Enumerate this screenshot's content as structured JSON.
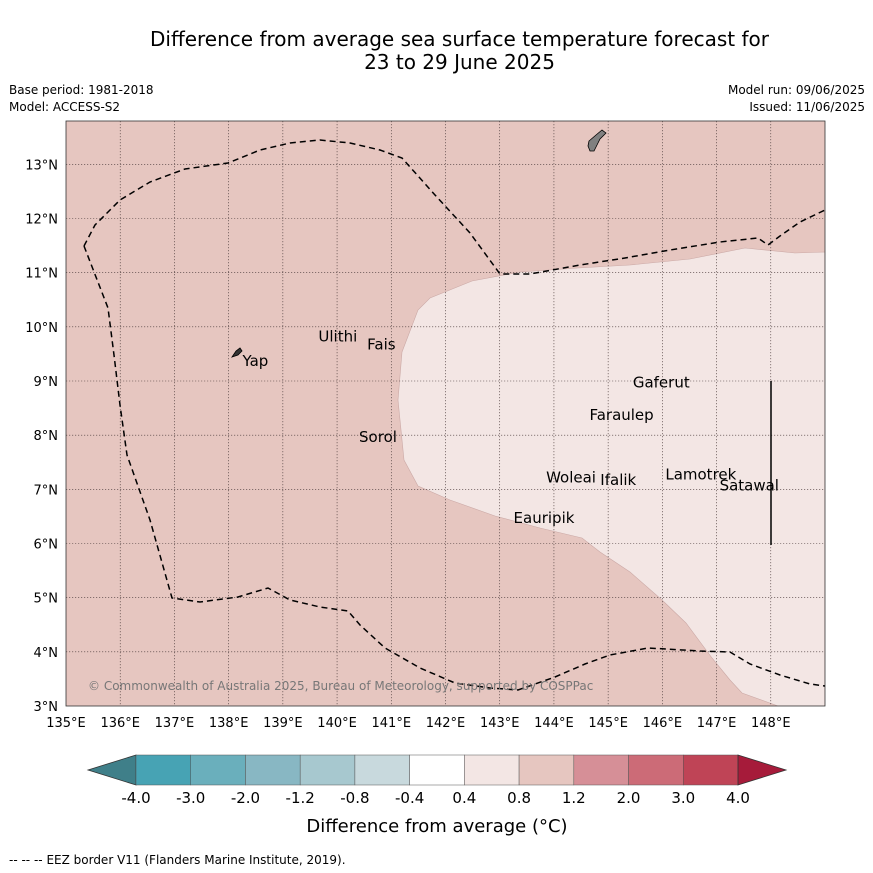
{
  "title": {
    "line1": "Difference from average sea surface temperature forecast for",
    "line2": "23 to 29 June 2025"
  },
  "meta": {
    "base_period": "Base period: 1981-2018",
    "model": "Model: ACCESS-S2",
    "model_run": "Model run: 09/06/2025",
    "issued": "Issued: 11/06/2025"
  },
  "map": {
    "lon_range": [
      135,
      149
    ],
    "lat_range": [
      3,
      13.8
    ],
    "x_ticks": [
      "135°E",
      "136°E",
      "137°E",
      "138°E",
      "139°E",
      "140°E",
      "141°E",
      "142°E",
      "143°E",
      "144°E",
      "145°E",
      "146°E",
      "147°E",
      "148°E"
    ],
    "y_ticks": [
      "3°N",
      "4°N",
      "5°N",
      "6°N",
      "7°N",
      "8°N",
      "9°N",
      "10°N",
      "11°N",
      "12°N",
      "13°N"
    ],
    "background_color": "#e6c6c0",
    "warm_region_color": "#f3e6e4",
    "copyright": "© Commonwealth of Australia 2025, Bureau of Meteorology, supported by COSPPac",
    "places": [
      {
        "name": "Yap",
        "lon": 138.2,
        "lat": 9.5
      },
      {
        "name": "Ulithi",
        "lon": 139.6,
        "lat": 9.95
      },
      {
        "name": "Fais",
        "lon": 140.5,
        "lat": 9.8
      },
      {
        "name": "Sorol",
        "lon": 140.35,
        "lat": 8.1
      },
      {
        "name": "Gaferut",
        "lon": 145.4,
        "lat": 9.1
      },
      {
        "name": "Faraulep",
        "lon": 144.6,
        "lat": 8.5
      },
      {
        "name": "Woleai",
        "lon": 143.8,
        "lat": 7.35
      },
      {
        "name": "Ifalik",
        "lon": 144.8,
        "lat": 7.3
      },
      {
        "name": "Lamotrek",
        "lon": 146.0,
        "lat": 7.4
      },
      {
        "name": "Eauripik",
        "lon": 143.2,
        "lat": 6.6
      },
      {
        "name": "Satawal",
        "lon": 147.0,
        "lat": 7.2
      }
    ]
  },
  "colorbar": {
    "tick_labels": [
      "-4.0",
      "-3.0",
      "-2.0",
      "-1.2",
      "-0.8",
      "-0.4",
      "0.4",
      "0.8",
      "1.2",
      "2.0",
      "3.0",
      "4.0"
    ],
    "colors": [
      "#3f7f89",
      "#47a3b4",
      "#6aafbc",
      "#88b7c3",
      "#a7c8cf",
      "#c8d9dd",
      "#ffffff",
      "#f3e6e4",
      "#e6c6c0",
      "#d68f97",
      "#cc6b77",
      "#bf4456",
      "#a61b3a"
    ],
    "label": "Difference from average (°C)"
  },
  "footer": {
    "legend_symbol": "-- --  --",
    "eez_note": "EEZ border V11 (Flanders Marine Institute, 2019)."
  }
}
